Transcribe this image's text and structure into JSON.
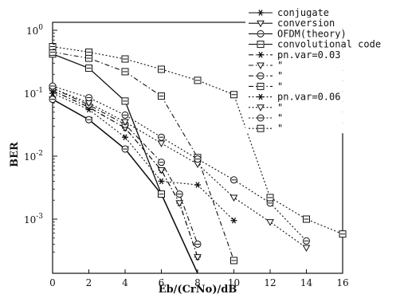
{
  "chart_data": {
    "type": "line",
    "title": "",
    "xlabel": "Eb/(CrNo)/dB",
    "ylabel": "BER",
    "log_y": true,
    "grid": false,
    "legend_position": "top-right",
    "xlim": [
      0,
      16
    ],
    "ylim": [
      0.0003,
      1
    ],
    "x_ticks": [
      "0",
      "2",
      "4",
      "6",
      "8",
      "10",
      "12",
      "14",
      "16"
    ],
    "y_ticks": [
      {
        "value": 1,
        "label": "10^0",
        "base": "10",
        "exp": "0"
      },
      {
        "value": 0.1,
        "label": "10^-1",
        "base": "10",
        "exp": "-1"
      },
      {
        "value": 0.01,
        "label": "10^-2",
        "base": "10",
        "exp": "-2"
      },
      {
        "value": 0.001,
        "label": "10^-3",
        "base": "10",
        "exp": "-3"
      }
    ],
    "series": [
      {
        "name": "conjugate",
        "group": "ideal",
        "marker": "star",
        "line": "solid",
        "color": "#111111",
        "x": [
          0,
          2,
          4,
          6,
          8
        ],
        "y": [
          0.08,
          0.038,
          0.013,
          0.0025,
          0.0001
        ]
      },
      {
        "name": "conversion",
        "group": "ideal",
        "marker": "triangle",
        "line": "solid",
        "color": "#111111",
        "x": [
          0,
          2,
          4,
          6,
          8
        ],
        "y": [
          0.08,
          0.038,
          0.013,
          0.0025,
          0.0001
        ]
      },
      {
        "name": "OFDM(theory)",
        "group": "ideal",
        "marker": "circle",
        "line": "solid",
        "color": "#111111",
        "x": [
          0,
          2,
          4,
          6,
          8
        ],
        "y": [
          0.08,
          0.038,
          0.013,
          0.0025,
          0.0001
        ]
      },
      {
        "name": "convolutional code",
        "group": "ideal",
        "marker": "square",
        "line": "solid",
        "color": "#111111",
        "x": [
          0,
          2,
          4,
          6,
          8
        ],
        "y": [
          0.42,
          0.25,
          0.075,
          0.0025,
          0.0001
        ]
      },
      {
        "name": "pn.var=0.03",
        "group": "pn.var=0.03",
        "marker": "star",
        "line": "dashdot",
        "color": "#111111",
        "x": [
          0,
          2,
          4,
          6,
          7,
          8
        ],
        "y": [
          0.11,
          0.06,
          0.028,
          0.006,
          0.0018,
          0.00025
        ]
      },
      {
        "name": "\"",
        "group": "pn.var=0.03",
        "marker": "triangle",
        "line": "dashdot",
        "color": "#111111",
        "x": [
          0,
          2,
          4,
          6,
          7,
          8
        ],
        "y": [
          0.11,
          0.06,
          0.028,
          0.006,
          0.0018,
          0.00025
        ]
      },
      {
        "name": "\"",
        "group": "pn.var=0.03",
        "marker": "circle",
        "line": "dashdot",
        "color": "#111111",
        "x": [
          0,
          2,
          4,
          6,
          7,
          8
        ],
        "y": [
          0.12,
          0.065,
          0.032,
          0.008,
          0.0025,
          0.0004
        ]
      },
      {
        "name": "\"",
        "group": "pn.var=0.03",
        "marker": "square",
        "line": "dashdot",
        "color": "#111111",
        "x": [
          0,
          2,
          4,
          6,
          8,
          10
        ],
        "y": [
          0.45,
          0.36,
          0.22,
          0.09,
          0.0095,
          0.00022
        ]
      },
      {
        "name": "pn.var=0.06",
        "group": "pn.var=0.06",
        "marker": "star",
        "line": "dotted",
        "color": "#111111",
        "x": [
          0,
          2,
          4,
          6,
          8,
          10
        ],
        "y": [
          0.1,
          0.055,
          0.02,
          0.004,
          0.0035,
          0.00095
        ]
      },
      {
        "name": "\"",
        "group": "pn.var=0.06",
        "marker": "triangle",
        "line": "dotted",
        "color": "#111111",
        "x": [
          0,
          2,
          4,
          6,
          8,
          10,
          12,
          14
        ],
        "y": [
          0.12,
          0.07,
          0.035,
          0.016,
          0.0075,
          0.0022,
          0.0009,
          0.00035
        ]
      },
      {
        "name": "\"",
        "group": "pn.var=0.06",
        "marker": "circle",
        "line": "dotted",
        "color": "#111111",
        "x": [
          0,
          2,
          4,
          6,
          8,
          10,
          12,
          14
        ],
        "y": [
          0.13,
          0.085,
          0.045,
          0.02,
          0.009,
          0.0042,
          0.0018,
          0.00045
        ]
      },
      {
        "name": "\"",
        "group": "pn.var=0.06",
        "marker": "square",
        "line": "dotted",
        "color": "#111111",
        "x": [
          0,
          2,
          4,
          6,
          8,
          10,
          12,
          14,
          16
        ],
        "y": [
          0.55,
          0.45,
          0.35,
          0.24,
          0.16,
          0.095,
          0.0022,
          0.001,
          0.00058
        ]
      }
    ]
  }
}
